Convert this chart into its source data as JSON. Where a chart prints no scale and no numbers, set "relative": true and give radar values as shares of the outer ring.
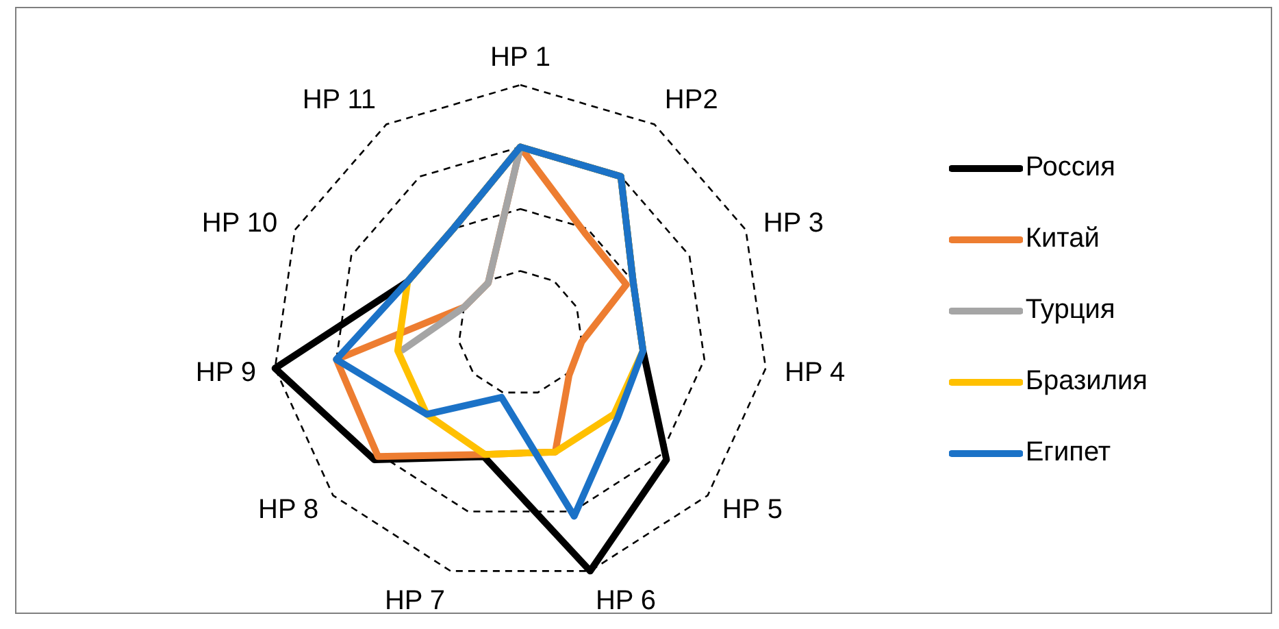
{
  "chart_data": {
    "type": "radar",
    "relative": true,
    "grid": true,
    "legend": "right",
    "categories": [
      "HP 1",
      "HP2",
      "HP 3",
      "HP 4",
      "HP 5",
      "HP 6",
      "HP 7",
      "HP 8",
      "HP 9",
      "HP 10",
      "HP 11"
    ],
    "series": [
      {
        "name": "Россия",
        "color": "#000000",
        "values": [
          0.75,
          0.75,
          0.5,
          0.5,
          0.78,
          1.0,
          0.52,
          0.78,
          1.0,
          0.5,
          0.5
        ]
      },
      {
        "name": "Китай",
        "color": "#ed7d31",
        "values": [
          0.75,
          0.48,
          0.47,
          0.25,
          0.26,
          0.5,
          0.51,
          0.76,
          0.75,
          0.25,
          0.24
        ]
      },
      {
        "name": "Турция",
        "color": "#a5a5a5",
        "values": [
          0.75,
          null,
          null,
          null,
          null,
          null,
          null,
          null,
          0.48,
          0.25,
          0.24
        ]
      },
      {
        "name": "Бразилия",
        "color": "#ffc000",
        "values": [
          0.75,
          0.75,
          0.5,
          0.5,
          0.5,
          0.5,
          0.51,
          0.5,
          0.5,
          0.5,
          0.5
        ]
      },
      {
        "name": "Египет",
        "color": "#1b72c7",
        "values": [
          0.75,
          0.75,
          0.5,
          0.5,
          0.52,
          0.77,
          0.27,
          0.5,
          0.75,
          0.5,
          0.5
        ]
      }
    ]
  }
}
